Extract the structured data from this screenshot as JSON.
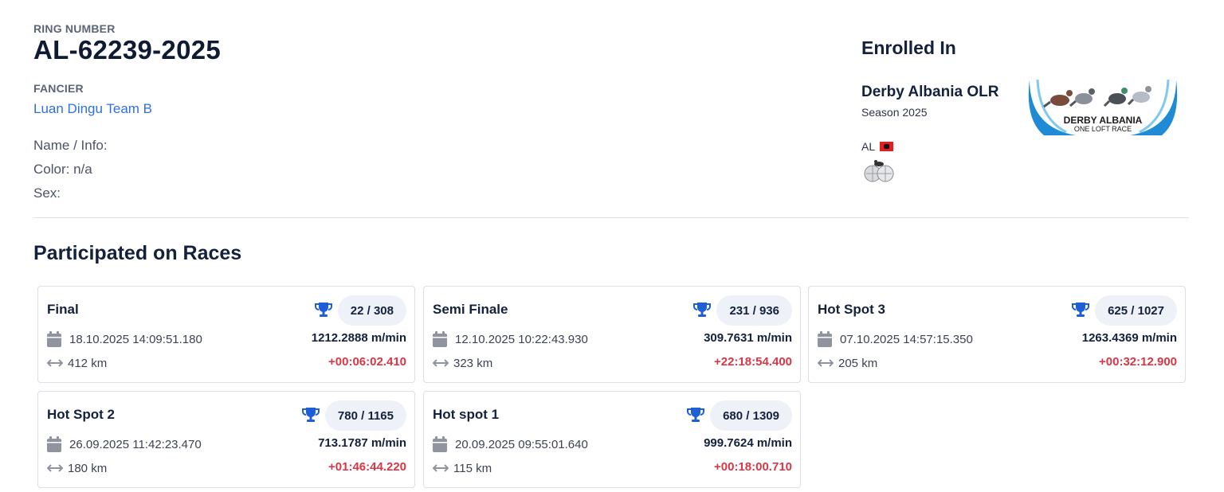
{
  "header": {
    "ring_label": "RING NUMBER",
    "ring_number": "AL-62239-2025",
    "fancier_label": "FANCIER",
    "fancier_name": "Luan Dingu Team B",
    "info_name": "Name / Info:",
    "info_color": "Color: n/a",
    "info_sex": "Sex:"
  },
  "enrolled": {
    "title": "Enrolled In",
    "race_name": "Derby Albania OLR",
    "season": "Season 2025",
    "logo_text_1": "DERBY ALBANIA",
    "logo_text_2": "ONE LOFT RACE",
    "country": "AL",
    "flag_icon": "albania-flag-icon"
  },
  "races_title": "Participated on Races",
  "races": [
    {
      "name": "Final",
      "rank": "22 / 308",
      "date": "18.10.2025 14:09:51.180",
      "speed": "1212.2888 m/min",
      "distance": "412 km",
      "diff": "+00:06:02.410"
    },
    {
      "name": "Semi Finale",
      "rank": "231 / 936",
      "date": "12.10.2025 10:22:43.930",
      "speed": "309.7631 m/min",
      "distance": "323 km",
      "diff": "+22:18:54.400"
    },
    {
      "name": "Hot Spot 3",
      "rank": "625 / 1027",
      "date": "07.10.2025 14:57:15.350",
      "speed": "1263.4369 m/min",
      "distance": "205 km",
      "diff": "+00:32:12.900"
    },
    {
      "name": "Hot Spot 2",
      "rank": "780 / 1165",
      "date": "26.09.2025 11:42:23.470",
      "speed": "713.1787 m/min",
      "distance": "180 km",
      "diff": "+01:46:44.220"
    },
    {
      "name": "Hot spot 1",
      "rank": "680 / 1309",
      "date": "20.09.2025 09:55:01.640",
      "speed": "999.7624 m/min",
      "distance": "115 km",
      "diff": "+00:18:00.710"
    }
  ],
  "colors": {
    "accent": "#2f6fde",
    "trophy": "#1f5fd6",
    "diff": "#dc3545",
    "pill": "#eef2f8"
  }
}
